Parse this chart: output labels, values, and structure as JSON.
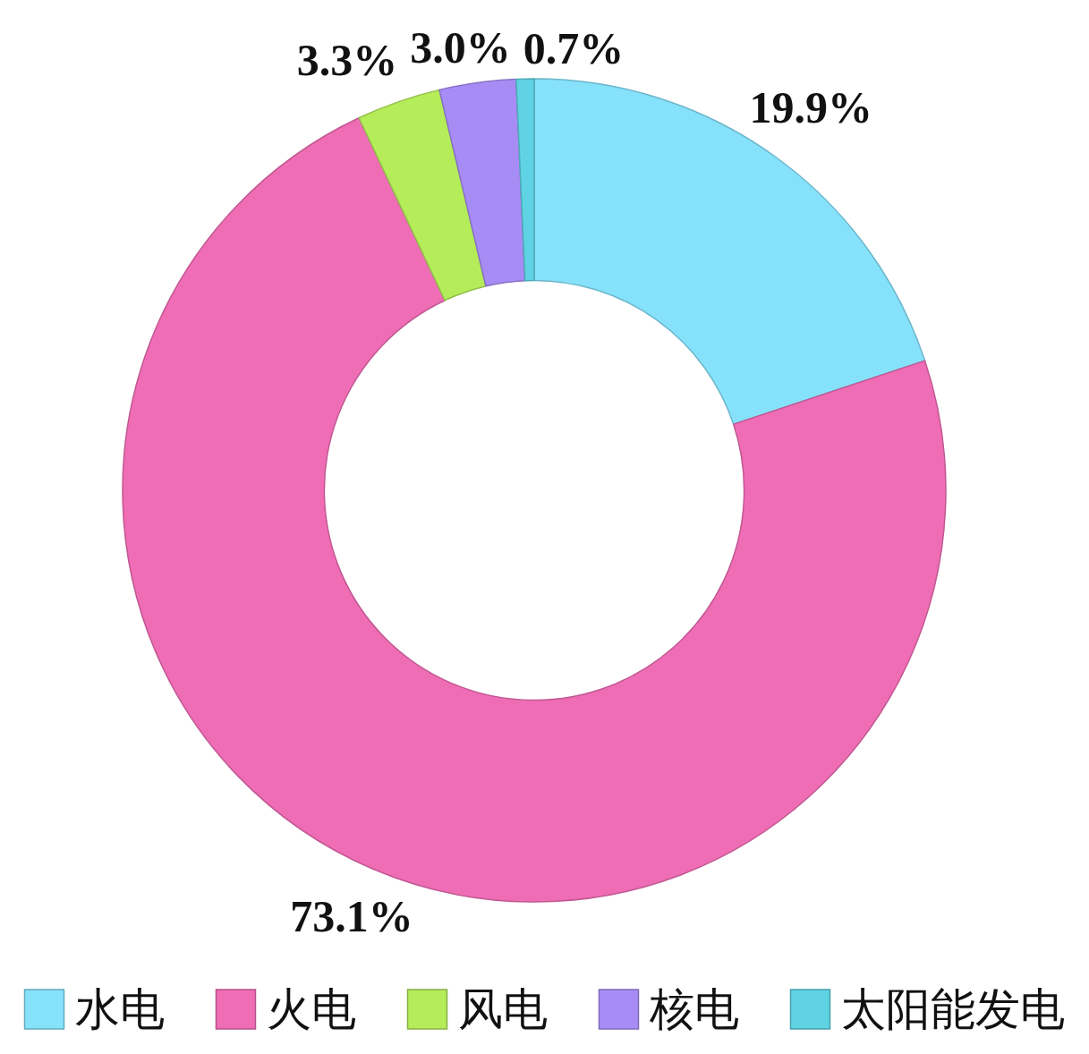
{
  "chart_data": {
    "type": "donut",
    "categories": [
      "水电",
      "火电",
      "风电",
      "核电",
      "太阳能发电"
    ],
    "values": [
      19.9,
      73.1,
      3.3,
      3.0,
      0.7
    ],
    "colors": [
      "#86e2fb",
      "#ef6db5",
      "#b5ec5a",
      "#a88cf6",
      "#5fd3e3"
    ],
    "value_labels": [
      "19.9%",
      "73.1%",
      "3.3%",
      "3.0%",
      "0.7%"
    ],
    "legend": "bottom"
  }
}
